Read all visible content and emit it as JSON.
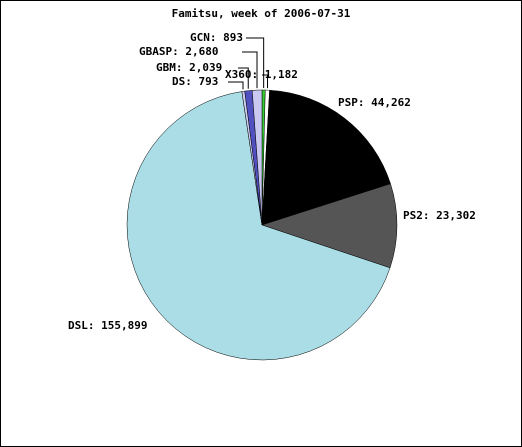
{
  "chart_data": {
    "type": "pie",
    "title": "Famitsu, week of 2006-07-31",
    "values": [
      893,
      1182,
      44262,
      23302,
      155899,
      793,
      2039,
      2680
    ],
    "value_labels": [
      "GCN: 893",
      "X360: 1,182",
      "PSP: 44,262",
      "PS2: 23,302",
      "DSL: 155,899",
      "DS: 793",
      "GBM: 2,039",
      "GBASP: 2,680"
    ],
    "colors": [
      "#33cc33",
      "#ffffff",
      "#000000",
      "#555555",
      "#aadde6",
      "#ccccf0",
      "#5050c0",
      "#c8c8f0"
    ]
  }
}
